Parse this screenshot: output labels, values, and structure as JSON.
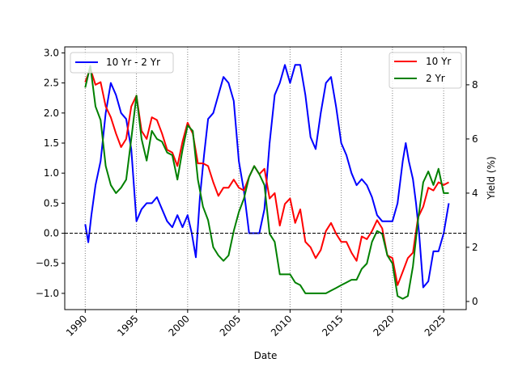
{
  "chart_data": {
    "type": "line",
    "xlabel": "Date",
    "ylabel_left": "",
    "ylabel_right": "Yield (%)",
    "x_range": [
      1988.0,
      2027.2
    ],
    "y_left_range": [
      -1.27,
      3.1
    ],
    "y_right_range": [
      -0.3,
      9.4
    ],
    "x_ticks": [
      {
        "value": 1990,
        "label": "1990"
      },
      {
        "value": 1995,
        "label": "1995"
      },
      {
        "value": 2000,
        "label": "2000"
      },
      {
        "value": 2005,
        "label": "2005"
      },
      {
        "value": 2010,
        "label": "2010"
      },
      {
        "value": 2015,
        "label": "2015"
      },
      {
        "value": 2020,
        "label": "2020"
      },
      {
        "value": 2025,
        "label": "2025"
      }
    ],
    "y_left_ticks": [
      {
        "value": -1.0,
        "label": "−1.0"
      },
      {
        "value": -0.5,
        "label": "−0.5"
      },
      {
        "value": 0.0,
        "label": "0.0"
      },
      {
        "value": 0.5,
        "label": "0.5"
      },
      {
        "value": 1.0,
        "label": "1.0"
      },
      {
        "value": 1.5,
        "label": "1.5"
      },
      {
        "value": 2.0,
        "label": "2.0"
      },
      {
        "value": 2.5,
        "label": "2.5"
      },
      {
        "value": 3.0,
        "label": "3.0"
      }
    ],
    "y_right_ticks": [
      {
        "value": 0,
        "label": "0"
      },
      {
        "value": 2,
        "label": "2"
      },
      {
        "value": 4,
        "label": "4"
      },
      {
        "value": 6,
        "label": "6"
      },
      {
        "value": 8,
        "label": "8"
      }
    ],
    "vertical_gridlines": [
      1990,
      1995,
      2000,
      2005,
      2010,
      2015,
      2020,
      2025
    ],
    "zero_line": 0.0,
    "legend_left": {
      "placement": "upper-left",
      "entries": [
        {
          "label": "10 Yr - 2 Yr",
          "color": "#0000ff"
        }
      ]
    },
    "legend_right": {
      "placement": "upper-right",
      "entries": [
        {
          "label": "10 Yr",
          "color": "#ff0000"
        },
        {
          "label": "2 Yr",
          "color": "#008000"
        }
      ]
    },
    "series": [
      {
        "name": "10 Yr - 2 Yr",
        "axis": "left",
        "color": "#0000ff",
        "x": [
          1990.0,
          1990.3,
          1990.6,
          1991.0,
          1991.5,
          1992.0,
          1992.5,
          1993.0,
          1993.5,
          1994.0,
          1994.5,
          1995.0,
          1995.5,
          1996.0,
          1996.5,
          1997.0,
          1997.5,
          1998.0,
          1998.5,
          1999.0,
          1999.5,
          2000.0,
          2000.4,
          2000.8,
          2001.2,
          2001.6,
          2002.0,
          2002.5,
          2003.0,
          2003.5,
          2004.0,
          2004.5,
          2005.0,
          2005.5,
          2006.0,
          2006.5,
          2007.0,
          2007.5,
          2008.0,
          2008.5,
          2009.0,
          2009.5,
          2010.0,
          2010.5,
          2011.0,
          2011.5,
          2012.0,
          2012.5,
          2013.0,
          2013.5,
          2014.0,
          2014.5,
          2015.0,
          2015.5,
          2016.0,
          2016.5,
          2017.0,
          2017.5,
          2018.0,
          2018.5,
          2019.0,
          2019.5,
          2020.0,
          2020.5,
          2021.0,
          2021.3,
          2021.6,
          2022.0,
          2022.3,
          2022.6,
          2023.0,
          2023.5,
          2024.0,
          2024.5,
          2025.0,
          2025.5
        ],
        "values": [
          0.15,
          -0.15,
          0.3,
          0.8,
          1.2,
          2.0,
          2.5,
          2.3,
          2.0,
          1.9,
          1.4,
          0.2,
          0.4,
          0.5,
          0.5,
          0.6,
          0.4,
          0.2,
          0.1,
          0.3,
          0.1,
          0.3,
          0.0,
          -0.4,
          0.6,
          1.3,
          1.9,
          2.0,
          2.3,
          2.6,
          2.5,
          2.2,
          1.2,
          0.7,
          0.0,
          0.0,
          0.0,
          0.4,
          1.5,
          2.3,
          2.5,
          2.8,
          2.5,
          2.8,
          2.8,
          2.3,
          1.6,
          1.4,
          2.0,
          2.5,
          2.6,
          2.1,
          1.5,
          1.3,
          1.0,
          0.8,
          0.9,
          0.8,
          0.6,
          0.3,
          0.2,
          0.2,
          0.2,
          0.5,
          1.2,
          1.5,
          1.2,
          0.9,
          0.5,
          0.0,
          -0.9,
          -0.8,
          -0.3,
          -0.3,
          0.0,
          0.5
        ]
      },
      {
        "name": "10 Yr",
        "axis": "right",
        "color": "#ff0000",
        "x": [
          1990.0,
          1990.5,
          1991.0,
          1991.5,
          1992.0,
          1992.5,
          1993.0,
          1993.5,
          1994.0,
          1994.5,
          1995.0,
          1995.5,
          1996.0,
          1996.5,
          1997.0,
          1997.5,
          1998.0,
          1998.5,
          1999.0,
          1999.5,
          2000.0,
          2000.5,
          2001.0,
          2001.5,
          2002.0,
          2002.5,
          2003.0,
          2003.5,
          2004.0,
          2004.5,
          2005.0,
          2005.5,
          2006.0,
          2006.5,
          2007.0,
          2007.5,
          2008.0,
          2008.5,
          2009.0,
          2009.5,
          2010.0,
          2010.5,
          2011.0,
          2011.5,
          2012.0,
          2012.5,
          2013.0,
          2013.5,
          2014.0,
          2014.5,
          2015.0,
          2015.5,
          2016.0,
          2016.5,
          2017.0,
          2017.5,
          2018.0,
          2018.5,
          2019.0,
          2019.5,
          2020.0,
          2020.5,
          2021.0,
          2021.5,
          2022.0,
          2022.5,
          2023.0,
          2023.5,
          2024.0,
          2024.5,
          2025.0,
          2025.5
        ],
        "values": [
          8.1,
          8.6,
          8.0,
          8.1,
          7.2,
          6.8,
          6.2,
          5.7,
          6.0,
          7.2,
          7.6,
          6.3,
          6.0,
          6.8,
          6.7,
          6.2,
          5.6,
          5.5,
          5.0,
          5.9,
          6.6,
          6.2,
          5.1,
          5.1,
          5.0,
          4.4,
          3.9,
          4.2,
          4.2,
          4.5,
          4.2,
          4.1,
          4.6,
          5.0,
          4.7,
          4.9,
          3.8,
          4.0,
          2.8,
          3.6,
          3.8,
          2.9,
          3.4,
          2.2,
          2.0,
          1.6,
          1.9,
          2.6,
          2.9,
          2.5,
          2.2,
          2.2,
          1.8,
          1.5,
          2.4,
          2.3,
          2.6,
          3.0,
          2.7,
          1.7,
          1.6,
          0.6,
          1.1,
          1.6,
          1.8,
          3.1,
          3.5,
          4.2,
          4.1,
          4.4,
          4.3,
          4.4
        ]
      },
      {
        "name": "2 Yr",
        "axis": "right",
        "color": "#008000",
        "x": [
          1990.0,
          1990.5,
          1991.0,
          1991.5,
          1992.0,
          1992.5,
          1993.0,
          1993.5,
          1994.0,
          1994.5,
          1995.0,
          1995.5,
          1996.0,
          1996.5,
          1997.0,
          1997.5,
          1998.0,
          1998.5,
          1999.0,
          1999.5,
          2000.0,
          2000.5,
          2001.0,
          2001.5,
          2002.0,
          2002.5,
          2003.0,
          2003.5,
          2004.0,
          2004.5,
          2005.0,
          2005.5,
          2006.0,
          2006.5,
          2007.0,
          2007.5,
          2008.0,
          2008.5,
          2009.0,
          2009.5,
          2010.0,
          2010.5,
          2011.0,
          2011.5,
          2012.0,
          2012.5,
          2013.0,
          2013.5,
          2014.0,
          2014.5,
          2015.0,
          2015.5,
          2016.0,
          2016.5,
          2017.0,
          2017.5,
          2018.0,
          2018.5,
          2019.0,
          2019.5,
          2020.0,
          2020.5,
          2021.0,
          2021.5,
          2022.0,
          2022.5,
          2023.0,
          2023.5,
          2024.0,
          2024.5,
          2025.0,
          2025.5
        ],
        "values": [
          7.9,
          8.7,
          7.2,
          6.7,
          5.0,
          4.3,
          4.0,
          4.2,
          4.5,
          6.0,
          7.6,
          6.0,
          5.2,
          6.3,
          6.0,
          5.9,
          5.5,
          5.4,
          4.5,
          5.6,
          6.5,
          6.3,
          4.5,
          3.5,
          3.0,
          2.0,
          1.7,
          1.5,
          1.7,
          2.6,
          3.3,
          3.8,
          4.6,
          5.0,
          4.7,
          4.3,
          2.5,
          2.2,
          1.0,
          1.0,
          1.0,
          0.7,
          0.6,
          0.3,
          0.3,
          0.3,
          0.3,
          0.3,
          0.4,
          0.5,
          0.6,
          0.7,
          0.8,
          0.8,
          1.2,
          1.4,
          2.2,
          2.6,
          2.5,
          1.7,
          1.4,
          0.2,
          0.1,
          0.2,
          1.3,
          3.0,
          4.4,
          4.8,
          4.3,
          4.9,
          4.0,
          4.0
        ]
      }
    ]
  }
}
